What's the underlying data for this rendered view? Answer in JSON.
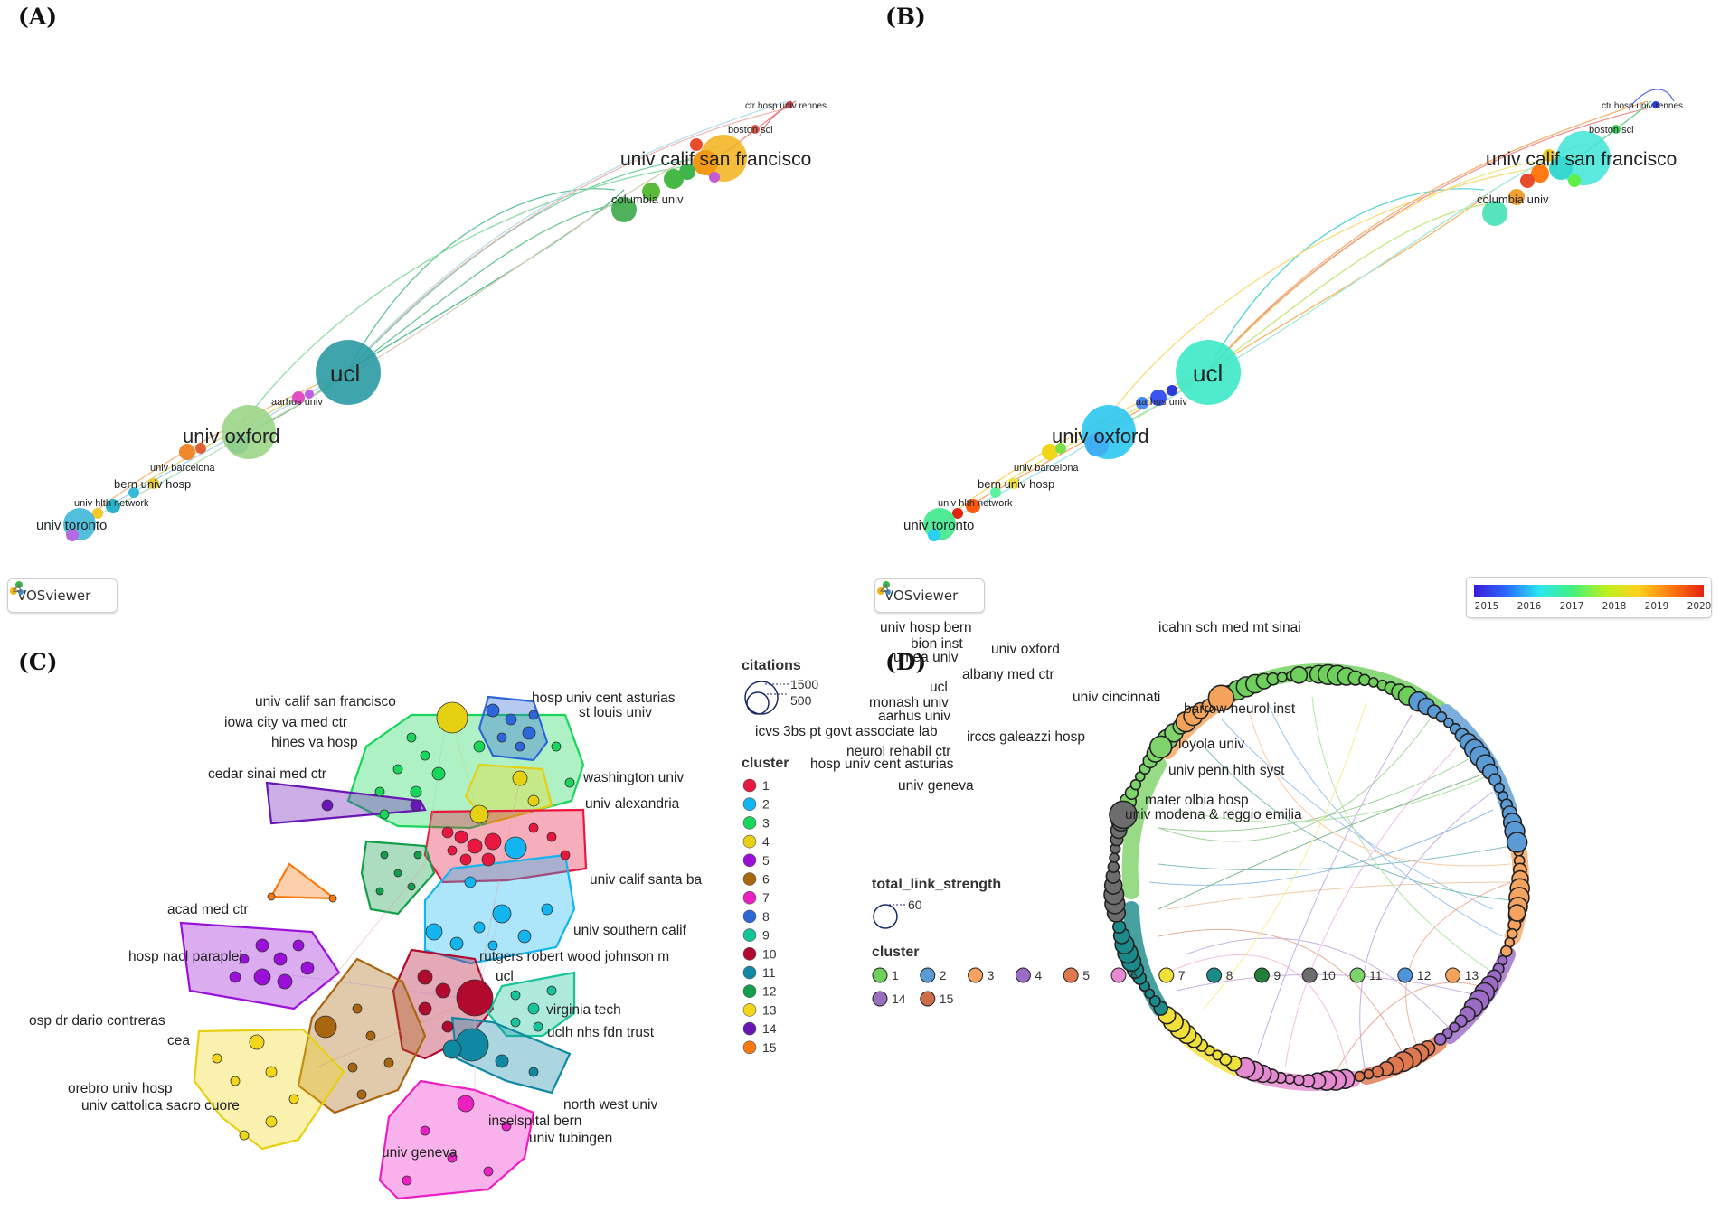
{
  "panels": {
    "A": {
      "letter": "(A)",
      "badge": "VOSviewer",
      "labels": {
        "ctr_hosp": "ctr hosp univ rennes",
        "boston": "boston sci",
        "ucsf": "univ calif san francisco",
        "columbia": "columbia univ",
        "ucl": "ucl",
        "aarhus": "aarhus univ",
        "oxford": "univ oxford",
        "barcelona": "univ barcelona",
        "bern": "bern univ hosp",
        "hlth": "univ hlth network",
        "toronto": "univ toronto"
      }
    },
    "B": {
      "letter": "(B)",
      "badge": "VOSviewer",
      "colorbar_ticks": [
        "2015",
        "2016",
        "2017",
        "2018",
        "2019",
        "2020"
      ],
      "labels": {
        "ctr_hosp": "ctr hosp univ rennes",
        "boston": "boston sci",
        "ucsf": "univ calif san francisco",
        "columbia": "columbia univ",
        "ucl": "ucl",
        "aarhus": "aarhus univ",
        "oxford": "univ oxford",
        "barcelona": "univ barcelona",
        "bern": "bern univ hosp",
        "hlth": "univ hlth network",
        "toronto": "univ toronto"
      }
    },
    "C": {
      "letter": "(C)",
      "size_legend_title": "citations",
      "size_1500": "1500",
      "size_500": "500",
      "cluster_title": "cluster",
      "clusters": [
        {
          "id": "1",
          "color": "#e8173f"
        },
        {
          "id": "2",
          "color": "#13b5f0"
        },
        {
          "id": "3",
          "color": "#18d65a"
        },
        {
          "id": "4",
          "color": "#e6d012"
        },
        {
          "id": "5",
          "color": "#9a10d8"
        },
        {
          "id": "6",
          "color": "#a8660f"
        },
        {
          "id": "7",
          "color": "#ec1fc2"
        },
        {
          "id": "8",
          "color": "#2d66d8"
        },
        {
          "id": "9",
          "color": "#16c49a"
        },
        {
          "id": "10",
          "color": "#b10a2e"
        },
        {
          "id": "11",
          "color": "#0e88a3"
        },
        {
          "id": "12",
          "color": "#139e4a"
        },
        {
          "id": "13",
          "color": "#f2d61a"
        },
        {
          "id": "14",
          "color": "#6a16b6"
        },
        {
          "id": "15",
          "color": "#f7790f"
        }
      ],
      "labels": {
        "ucsf": "univ  calif  san  francisco",
        "hosp_ast": "hosp  univ  cent  asturias",
        "stlouis": "st  louis  univ",
        "iowa": "iowa  city  va  med  ctr",
        "hines": "hines  va  hosp",
        "cedar": "cedar  sinai  med  ctr",
        "wash": "washington  univ",
        "alex": "univ  alexandria",
        "santa": "univ  calif  santa  ba",
        "acad": "acad  med  ctr",
        "usc": "univ  southern  calif",
        "paraplej": "hosp  nacl  paraplej",
        "rutgers": "rutgers  robert  wood  johnson  m",
        "ucl": "ucl",
        "dario": "osp  dr  dario  contreras",
        "vt": "virginia  tech",
        "cea": "cea",
        "uclh": "uclh  nhs  fdn  trust",
        "orebro": "orebro  univ  hosp",
        "cattolica": "univ  cattolica  sacro  cuore",
        "nw": "north  west  univ",
        "insel": "inselspital  bern",
        "tub": "univ  tubingen",
        "geneva": "univ  geneva"
      }
    },
    "D": {
      "letter": "(D)",
      "size_legend_title": "total_link_strength",
      "size_60": "60",
      "cluster_title": "cluster",
      "clusters": [
        {
          "id": "1",
          "color": "#6fcf5c"
        },
        {
          "id": "2",
          "color": "#5b9bd5"
        },
        {
          "id": "3",
          "color": "#f4a460"
        },
        {
          "id": "4",
          "color": "#9b6bc6"
        },
        {
          "id": "5",
          "color": "#e0784f"
        },
        {
          "id": "6",
          "color": "#e58ad0"
        },
        {
          "id": "7",
          "color": "#f2e03a"
        },
        {
          "id": "8",
          "color": "#1b8a8a"
        },
        {
          "id": "9",
          "color": "#22803a"
        },
        {
          "id": "10",
          "color": "#6d6d6d"
        },
        {
          "id": "11",
          "color": "#7ed36a"
        },
        {
          "id": "12",
          "color": "#4f94db"
        },
        {
          "id": "13",
          "color": "#f4a45a"
        },
        {
          "id": "14",
          "color": "#9a6fbf"
        },
        {
          "id": "15",
          "color": "#cc6c48"
        }
      ],
      "labels": {
        "albany": "albany  med  ctr",
        "icahn": "icahn  sch  med  mt  sinai",
        "bern": "univ  hosp  bern",
        "bion": "bion  inst",
        "oxford": "univ  oxford",
        "umea": "umea  univ",
        "ucl": "ucl",
        "cinc": "univ  cincinnati",
        "monash": "monash  univ",
        "barrow": "barrow  neurol  inst",
        "aarhus": "aarhus  univ",
        "icvs": "icvs  3bs  pt  govt  associate  lab",
        "galeazzi": "irccs  galeazzi  hosp",
        "loyola": "loyola  univ",
        "neurol": "neurol  rehabil  ctr",
        "asturias": "hosp  univ  cent  asturias",
        "penn": "univ  penn  hlth  syst",
        "geneva": "univ  geneva",
        "mater": "mater  olbia  hosp",
        "modena": "univ  modena  &  reggio  emilia"
      }
    }
  }
}
